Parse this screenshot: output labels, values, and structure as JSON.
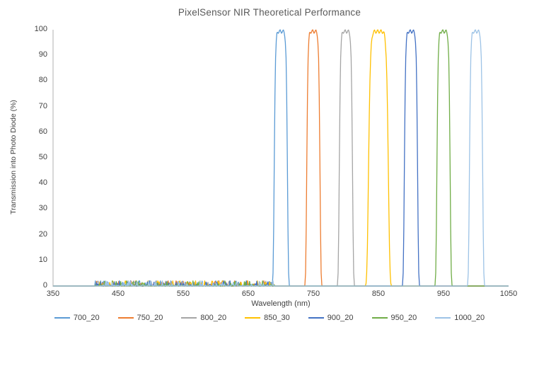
{
  "chart_data": {
    "type": "line",
    "title": "PixelSensor NIR Theoretical Performance",
    "xlabel": "Wavelength (nm)",
    "ylabel": "Transmission into Photo Diode (%)",
    "xlim": [
      350,
      1050
    ],
    "ylim": [
      0,
      100
    ],
    "x_ticks": [
      350,
      450,
      550,
      650,
      750,
      850,
      950,
      1050
    ],
    "y_ticks": [
      0,
      10,
      20,
      30,
      40,
      50,
      60,
      70,
      80,
      90,
      100
    ],
    "grid": false,
    "legend_position": "bottom",
    "axis_color": "#BFBFBF",
    "text_color": "#404040",
    "title_color": "#595959",
    "series": [
      {
        "name": "700_20",
        "color": "#5B9BD5",
        "center_nm": 700,
        "fwhm_nm": 20,
        "peak_transmission_pct": 100
      },
      {
        "name": "750_20",
        "color": "#ED7D31",
        "center_nm": 750,
        "fwhm_nm": 20,
        "peak_transmission_pct": 100
      },
      {
        "name": "800_20",
        "color": "#A5A5A5",
        "center_nm": 800,
        "fwhm_nm": 20,
        "peak_transmission_pct": 100
      },
      {
        "name": "850_30",
        "color": "#FFC000",
        "center_nm": 850,
        "fwhm_nm": 30,
        "peak_transmission_pct": 100
      },
      {
        "name": "900_20",
        "color": "#4472C4",
        "center_nm": 900,
        "fwhm_nm": 20,
        "peak_transmission_pct": 100
      },
      {
        "name": "950_20",
        "color": "#70AD47",
        "center_nm": 950,
        "fwhm_nm": 20,
        "peak_transmission_pct": 100
      },
      {
        "name": "1000_20",
        "color": "#9DC3E6",
        "center_nm": 1000,
        "fwhm_nm": 20,
        "peak_transmission_pct": 100
      }
    ],
    "baseline_noise": {
      "range_nm": [
        415,
        690
      ],
      "max_pct": 2
    }
  }
}
